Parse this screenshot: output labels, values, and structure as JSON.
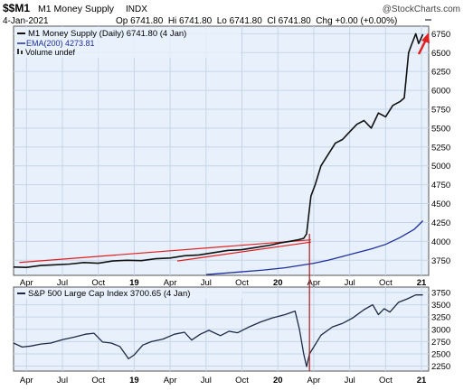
{
  "header": {
    "symbol": "$$M1",
    "name": "M1 Money Supply",
    "exchange": "INDX",
    "watermark": "@StockCharts.com",
    "date": "4-Jan-2021",
    "ohlc": "Op 6741.80  Hi 6741.80  Lo 6741.80  Cl 6741.80  Chg +0.00 (+0.00%)"
  },
  "legend_top": {
    "series": "M1 Money Supply (Daily) 6741.80 (4 Jan)",
    "ema": "EMA(200) 4273.81",
    "volume": "Volume undef"
  },
  "legend_bottom": {
    "series": "S&P 500 Large Cap Index 3700.65 (4 Jan)"
  },
  "colors": {
    "panel_bg": "#e8f1fb",
    "grid": "#c5d5e8",
    "price_line": "#111111",
    "ema_line": "#1f2e9c",
    "channel": "#e02020",
    "arrow": "#e02020",
    "spx_line": "#1d2a47",
    "vline": "#b01818"
  },
  "chart_data": [
    {
      "type": "line",
      "title": "M1 Money Supply (Daily)",
      "x_unit": "year",
      "xlim": [
        2018.16,
        2021.05
      ],
      "ylim": [
        3550,
        6850
      ],
      "yticks": [
        3750,
        4000,
        4250,
        4500,
        4750,
        5000,
        5250,
        5500,
        5750,
        6000,
        6250,
        6500,
        6750
      ],
      "xticks": [
        {
          "label": "Apr",
          "x": 2018.25
        },
        {
          "label": "Jul",
          "x": 2018.5
        },
        {
          "label": "Oct",
          "x": 2018.75
        },
        {
          "label": "19",
          "x": 2019.0
        },
        {
          "label": "Apr",
          "x": 2019.25
        },
        {
          "label": "Jul",
          "x": 2019.5
        },
        {
          "label": "Oct",
          "x": 2019.75
        },
        {
          "label": "20",
          "x": 2020.0
        },
        {
          "label": "Apr",
          "x": 2020.25
        },
        {
          "label": "Jul",
          "x": 2020.5
        },
        {
          "label": "Oct",
          "x": 2020.75
        },
        {
          "label": "21",
          "x": 2021.0
        }
      ],
      "grid": true,
      "series": [
        {
          "name": "M1 Money Supply",
          "x": [
            2018.16,
            2018.25,
            2018.35,
            2018.45,
            2018.55,
            2018.65,
            2018.75,
            2018.85,
            2018.95,
            2019.05,
            2019.15,
            2019.25,
            2019.35,
            2019.45,
            2019.55,
            2019.65,
            2019.75,
            2019.85,
            2019.95,
            2020.02,
            2020.08,
            2020.14,
            2020.18,
            2020.2,
            2020.23,
            2020.26,
            2020.3,
            2020.35,
            2020.4,
            2020.45,
            2020.5,
            2020.55,
            2020.6,
            2020.65,
            2020.7,
            2020.75,
            2020.8,
            2020.85,
            2020.88,
            2020.91,
            2020.93,
            2020.96,
            2020.98,
            2021.01
          ],
          "y": [
            3660,
            3655,
            3680,
            3690,
            3700,
            3720,
            3710,
            3740,
            3750,
            3745,
            3770,
            3780,
            3810,
            3820,
            3850,
            3880,
            3890,
            3920,
            3950,
            3980,
            4000,
            4020,
            4040,
            4100,
            4600,
            4750,
            5000,
            5150,
            5300,
            5350,
            5450,
            5550,
            5600,
            5500,
            5700,
            5650,
            5800,
            5850,
            5900,
            6500,
            6600,
            6750,
            6620,
            6741.8
          ]
        },
        {
          "name": "EMA(200)",
          "x": [
            2019.5,
            2019.7,
            2019.9,
            2020.05,
            2020.15,
            2020.25,
            2020.35,
            2020.45,
            2020.55,
            2020.65,
            2020.75,
            2020.85,
            2020.95,
            2021.01
          ],
          "y": [
            3560,
            3590,
            3620,
            3650,
            3680,
            3710,
            3750,
            3800,
            3850,
            3900,
            3960,
            4050,
            4160,
            4273.81
          ]
        }
      ],
      "channel_lines": [
        {
          "x": [
            2018.2,
            2020.23
          ],
          "y": [
            3720,
            4020
          ]
        },
        {
          "x": [
            2019.3,
            2020.23
          ],
          "y": [
            3740,
            3990
          ]
        }
      ]
    },
    {
      "type": "line",
      "title": "S&P 500 Large Cap Index",
      "x_unit": "year",
      "xlim": [
        2018.16,
        2021.05
      ],
      "ylim": [
        2150,
        3860
      ],
      "yticks": [
        2250,
        2500,
        2750,
        3000,
        3250,
        3500,
        3750
      ],
      "grid": true,
      "series": [
        {
          "name": "S&P 500 Large Cap Index",
          "x": [
            2018.16,
            2018.22,
            2018.28,
            2018.35,
            2018.42,
            2018.5,
            2018.58,
            2018.66,
            2018.72,
            2018.78,
            2018.84,
            2018.9,
            2018.96,
            2019.0,
            2019.06,
            2019.12,
            2019.2,
            2019.28,
            2019.35,
            2019.4,
            2019.46,
            2019.52,
            2019.6,
            2019.66,
            2019.72,
            2019.8,
            2019.88,
            2019.96,
            2020.05,
            2020.12,
            2020.15,
            2020.18,
            2020.2,
            2020.22,
            2020.25,
            2020.3,
            2020.38,
            2020.45,
            2020.52,
            2020.6,
            2020.66,
            2020.7,
            2020.74,
            2020.78,
            2020.84,
            2020.9,
            2020.96,
            2021.01
          ],
          "y": [
            2720,
            2640,
            2660,
            2700,
            2720,
            2790,
            2840,
            2900,
            2920,
            2740,
            2720,
            2650,
            2400,
            2480,
            2680,
            2750,
            2800,
            2900,
            2940,
            2780,
            2900,
            2980,
            2870,
            2960,
            2930,
            3050,
            3150,
            3230,
            3300,
            3370,
            3000,
            2500,
            2240,
            2500,
            2640,
            2880,
            3050,
            3120,
            3230,
            3400,
            3500,
            3300,
            3420,
            3350,
            3550,
            3620,
            3700,
            3700.65
          ]
        }
      ]
    }
  ]
}
